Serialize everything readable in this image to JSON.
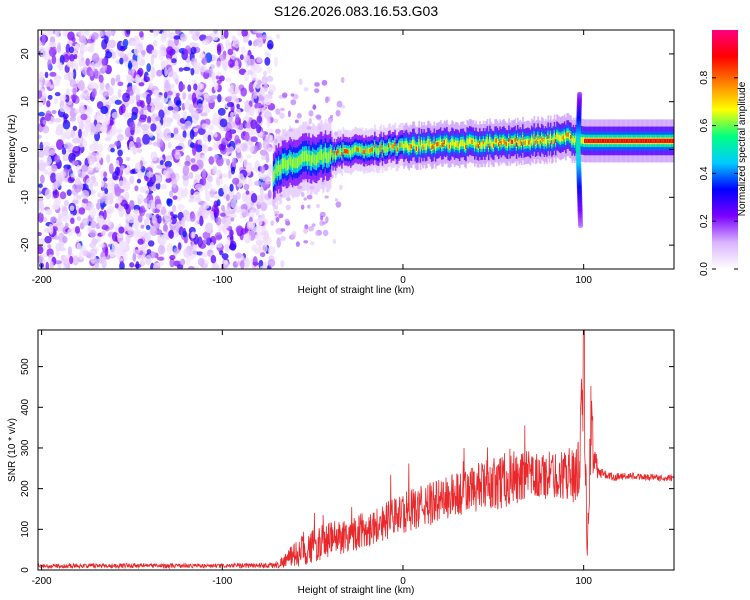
{
  "title": "S126.2026.083.16.53.G03",
  "chart_data": [
    {
      "type": "heatmap",
      "name": "spectrogram",
      "xlabel": "Height of straight line (km)",
      "ylabel": "Frequency (Hz)",
      "xlim": [
        -202,
        150
      ],
      "ylim": [
        -25,
        25
      ],
      "xticks": [
        -200,
        -100,
        0,
        100
      ],
      "yticks": [
        -20,
        -10,
        0,
        10,
        20
      ],
      "colorbar": {
        "label": "Normalized spectral amplitude",
        "range": [
          0,
          1
        ],
        "ticks": [
          "0.0",
          "0.2",
          "0.4",
          "0.6",
          "0.8"
        ],
        "colors": [
          "#ffffff",
          "#d9b3ff",
          "#7a00ff",
          "#0000ff",
          "#00ccff",
          "#00ff80",
          "#ffff00",
          "#ff8000",
          "#ff0000",
          "#ff0080"
        ]
      },
      "noise_region_x": [
        -202,
        -72
      ],
      "signal_ridge": {
        "x": [
          -72,
          -65,
          -55,
          -45,
          -35,
          -20,
          -10,
          0,
          20,
          40,
          60,
          80,
          92,
          100,
          120,
          150
        ],
        "freq": [
          -5,
          -3,
          -2,
          -1.5,
          -0.5,
          0,
          0.3,
          0.8,
          1,
          1.3,
          1.6,
          2,
          2.5,
          1.8,
          1.8,
          1.8
        ],
        "peak_amplitude": 0.9
      },
      "spike": {
        "x": 100,
        "freq_range": [
          -16,
          12
        ]
      }
    },
    {
      "type": "line",
      "name": "snr",
      "xlabel": "Height of straight line (km)",
      "ylabel": "SNR (10 * v/v)",
      "xlim": [
        -202,
        150
      ],
      "ylim": [
        0,
        590
      ],
      "xticks": [
        -200,
        -100,
        0,
        100
      ],
      "yticks": [
        0,
        100,
        200,
        300,
        400,
        500
      ],
      "color": "#e8282b",
      "series_shape": {
        "x": [
          -202,
          -150,
          -100,
          -70,
          -55,
          -40,
          -20,
          0,
          20,
          40,
          60,
          75,
          90,
          97,
          100,
          102,
          104,
          108,
          115,
          130,
          150
        ],
        "mean": [
          10,
          11,
          10,
          12,
          50,
          75,
          100,
          140,
          170,
          200,
          225,
          230,
          235,
          240,
          450,
          60,
          350,
          240,
          230,
          230,
          225
        ],
        "noise": [
          5,
          6,
          5,
          8,
          40,
          45,
          45,
          50,
          55,
          60,
          70,
          60,
          60,
          80,
          120,
          40,
          120,
          15,
          10,
          8,
          8
        ]
      }
    }
  ]
}
